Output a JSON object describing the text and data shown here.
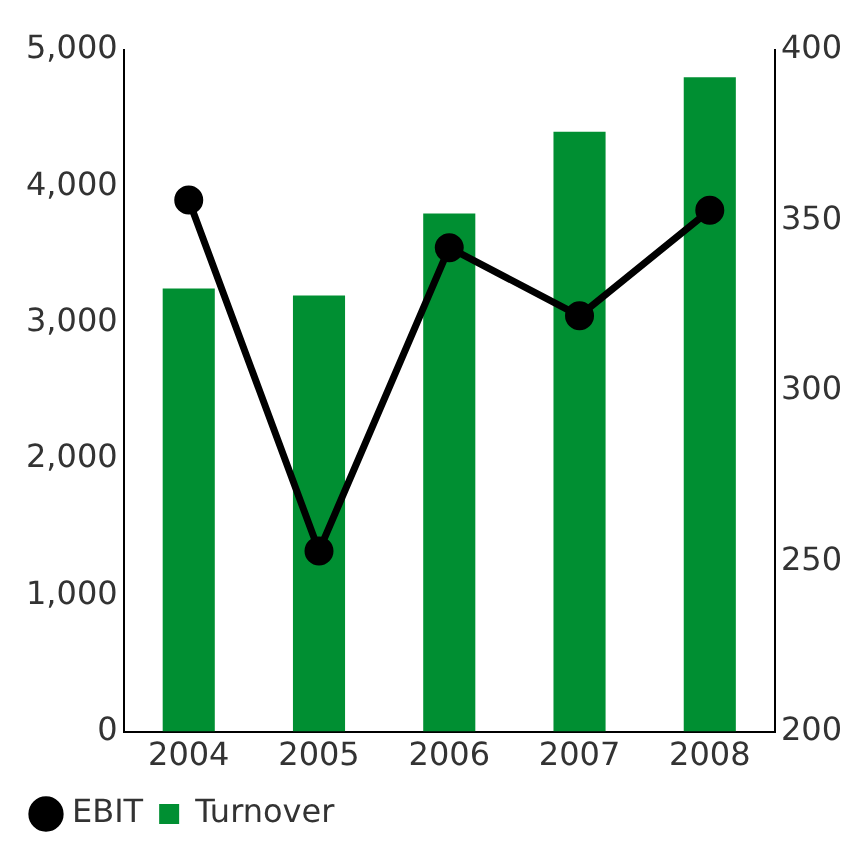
{
  "chart_data": {
    "type": "bar",
    "categories": [
      "2004",
      "2005",
      "2006",
      "2007",
      "2008"
    ],
    "series": [
      {
        "name": "EBIT",
        "type": "line",
        "axis": "y2",
        "color": "#000000",
        "values": [
          356,
          253,
          342,
          322,
          353
        ]
      },
      {
        "name": "Turnover",
        "color": "#008f32",
        "values": [
          3250,
          3200,
          3800,
          4400,
          4800
        ]
      }
    ],
    "ylim": [
      0,
      5000
    ],
    "yticks": [
      {
        "value": 0,
        "label": "0"
      },
      {
        "value": 1000,
        "label": "1,000"
      },
      {
        "value": 2000,
        "label": "2,000"
      },
      {
        "value": 3000,
        "label": "3,000"
      },
      {
        "value": 4000,
        "label": "4,000"
      },
      {
        "value": 5000,
        "label": "5,000"
      }
    ],
    "y2lim": [
      200,
      400
    ],
    "y2ticks": [
      200,
      250,
      300,
      350,
      400
    ],
    "grid": false,
    "legend": "bottom left",
    "marker": "circle",
    "line_style": "solid"
  }
}
